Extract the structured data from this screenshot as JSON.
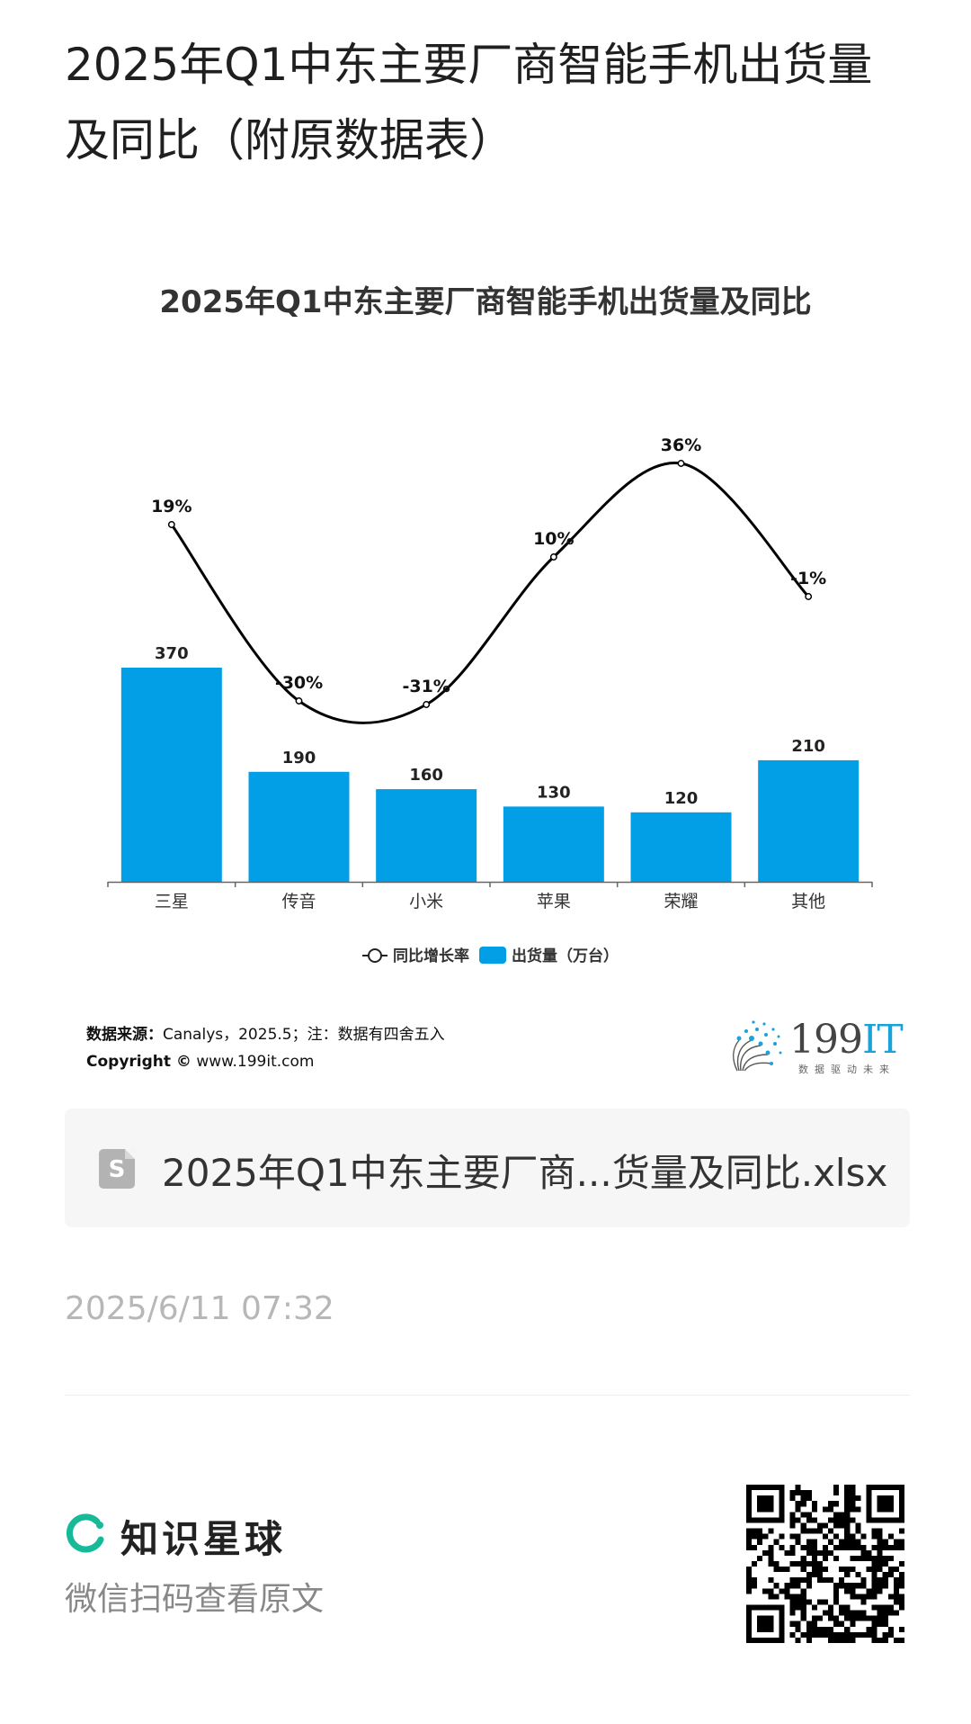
{
  "page": {
    "title": "2025年Q1中东主要厂商智能手机出货量及同比（附原数据表）"
  },
  "chart_data": {
    "type": "bar",
    "title": "2025年Q1中东主要厂商智能手机出货量及同比",
    "categories": [
      "三星",
      "传音",
      "小米",
      "苹果",
      "荣耀",
      "其他"
    ],
    "series": [
      {
        "name": "出货量（万台）",
        "type": "bar",
        "values": [
          370,
          190,
          160,
          130,
          120,
          210
        ],
        "labels": [
          "370",
          "190",
          "160",
          "130",
          "120",
          "210"
        ],
        "color": "#039fe6"
      },
      {
        "name": "同比增长率",
        "type": "line",
        "values": [
          19,
          -30,
          -31,
          10,
          36,
          -1
        ],
        "labels": [
          "19%",
          "-30%",
          "-31%",
          "10%",
          "36%",
          "-1%"
        ],
        "color": "#000000"
      }
    ],
    "legend": "bottom-center",
    "grid": false
  },
  "source": {
    "label": "数据来源：",
    "text": "Canalys，2025.5；注：数据有四舍五入",
    "copyright_label": "Copyright ©",
    "site": "www.199it.com"
  },
  "logo": {
    "text_main": "199",
    "text_accent": "IT",
    "tagline": "数据驱动未来"
  },
  "file": {
    "icon": "spreadsheet-icon",
    "icon_letter": "S",
    "name": "2025年Q1中东主要厂商...货量及同比.xlsx"
  },
  "timestamp": "2025/6/11 07:32",
  "footer": {
    "brand": "知识星球",
    "hint": "微信扫码查看原文",
    "accent_color": "#16b998"
  }
}
